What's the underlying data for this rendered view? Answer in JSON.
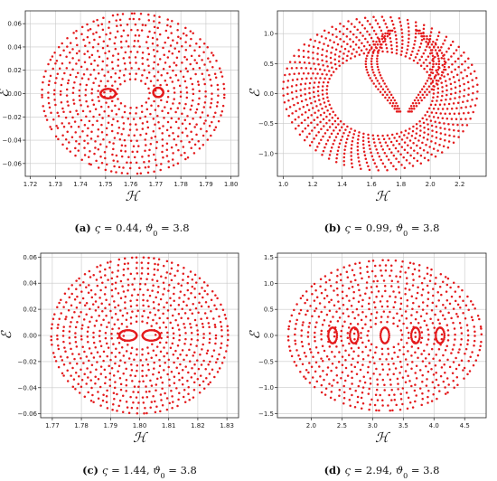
{
  "chart_data": [
    {
      "type": "scatter",
      "panel": "a",
      "caption": {
        "label": "(a)",
        "sym1": "ς",
        "val1": " = 0.44, ",
        "sym2": "ϑ",
        "sub2": "0",
        "val2": " = 3.8"
      },
      "xlabel": "ℋ",
      "ylabel": "ℰ",
      "xlim": [
        1.718,
        1.803
      ],
      "ylim": [
        -0.071,
        0.071
      ],
      "xticks": [
        "1.72",
        "1.73",
        "1.74",
        "1.75",
        "1.76",
        "1.77",
        "1.78",
        "1.79",
        "1.80"
      ],
      "yticks": [
        "−0.06",
        "−0.04",
        "−0.02",
        "0.00",
        "0.02",
        "0.04",
        "0.06"
      ],
      "series": [
        {
          "color": "#e41a1c",
          "shape": "disk",
          "cx": 1.761,
          "cy": 0.0,
          "rx": 0.0365,
          "ry": 0.069
        }
      ],
      "grid": true
    },
    {
      "type": "scatter",
      "panel": "b",
      "caption": {
        "label": "(b)",
        "sym1": "ς",
        "val1": " = 0.99, ",
        "sym2": "ϑ",
        "sub2": "0",
        "val2": " = 3.8"
      },
      "xlabel": "ℋ",
      "ylabel": "ℰ",
      "xlim": [
        0.96,
        2.38
      ],
      "ylim": [
        -1.38,
        1.38
      ],
      "xticks": [
        "1.0",
        "1.2",
        "1.4",
        "1.6",
        "1.8",
        "2.0",
        "2.2"
      ],
      "yticks": [
        "−1.0",
        "−0.5",
        "0.0",
        "0.5",
        "1.0"
      ],
      "series": [
        {
          "color": "#e41a1c",
          "shape": "ring",
          "cx": 1.66,
          "cy": 0.0,
          "rx": 0.66,
          "ry": 1.28
        }
      ],
      "grid": true
    },
    {
      "type": "scatter",
      "panel": "c",
      "caption": {
        "label": "(c)",
        "sym1": "ς",
        "val1": " = 1.44, ",
        "sym2": "ϑ",
        "sub2": "0",
        "val2": " = 3.8"
      },
      "xlabel": "ℋ",
      "ylabel": "ℰ",
      "xlim": [
        1.766,
        1.834
      ],
      "ylim": [
        -0.063,
        0.063
      ],
      "xticks": [
        "1.77",
        "1.78",
        "1.79",
        "1.80",
        "1.81",
        "1.82",
        "1.83"
      ],
      "yticks": [
        "−0.06",
        "−0.04",
        "−0.02",
        "0.00",
        "0.02",
        "0.04",
        "0.06"
      ],
      "series": [
        {
          "color": "#e41a1c",
          "shape": "disk",
          "cx": 1.8,
          "cy": 0.0,
          "rx": 0.0305,
          "ry": 0.06
        }
      ],
      "grid": true
    },
    {
      "type": "scatter",
      "panel": "d",
      "caption": {
        "label": "(d)",
        "sym1": "ς",
        "val1": " = 2.94, ",
        "sym2": "ϑ",
        "sub2": "0",
        "val2": " = 3.8"
      },
      "xlabel": "ℋ",
      "ylabel": "ℰ",
      "xlim": [
        1.45,
        4.85
      ],
      "ylim": [
        -1.58,
        1.58
      ],
      "xticks": [
        "2.0",
        "2.5",
        "3.0",
        "3.5",
        "4.0",
        "4.5"
      ],
      "yticks": [
        "−1.5",
        "−1.0",
        "−0.5",
        "0.0",
        "0.5",
        "1.0",
        "1.5"
      ],
      "series": [
        {
          "color": "#e41a1c",
          "shape": "disk",
          "cx": 3.2,
          "cy": 0.0,
          "rx": 1.58,
          "ry": 1.45
        }
      ],
      "grid": true
    }
  ]
}
